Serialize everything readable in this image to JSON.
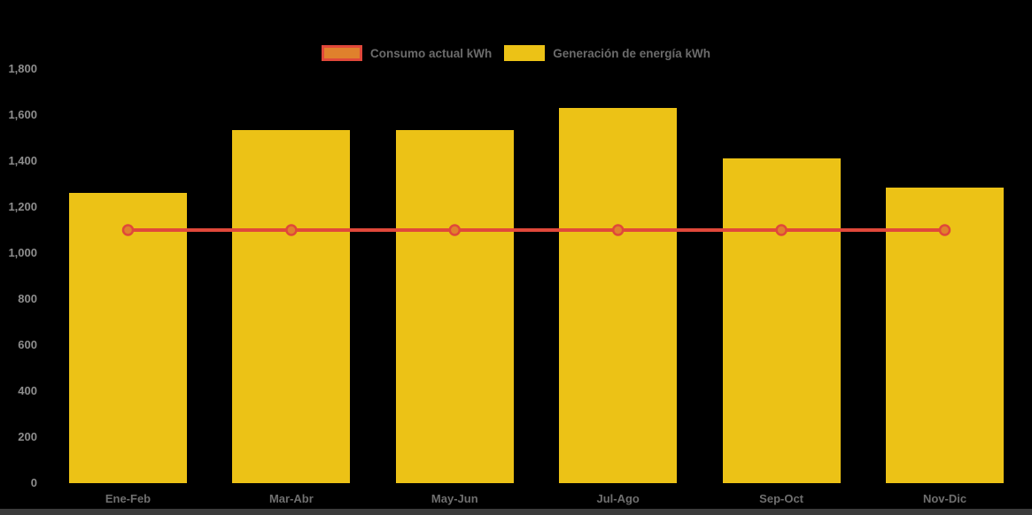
{
  "colors": {
    "background": "#000000",
    "bar_yellow": "#ecc216",
    "line_red": "#e0483a",
    "marker_orange": "#e0812c",
    "y_tick_text": "#8d8d8d",
    "x_tick_text": "#6f6f6f",
    "legend_text": "#6b6b6b",
    "bottom_strip": "#3b3b3b"
  },
  "chart_data": {
    "type": "bar",
    "subtype": "bar-with-line-overlay",
    "categories": [
      "Ene-Feb",
      "Mar-Abr",
      "May-Jun",
      "Jul-Ago",
      "Sep-Oct",
      "Nov-Dic"
    ],
    "series": [
      {
        "name": "Consumo actual kWh",
        "type": "line",
        "values": [
          1100,
          1100,
          1100,
          1100,
          1100,
          1100
        ],
        "color": "#e0483a",
        "marker_fill": "#e0812c"
      },
      {
        "name": "Generación de energía kWh",
        "type": "bar",
        "values": [
          1260,
          1535,
          1535,
          1630,
          1410,
          1285
        ],
        "color": "#ecc216"
      }
    ],
    "title": "",
    "xlabel": "",
    "ylabel": "",
    "ylim": [
      0,
      1800
    ],
    "ytick_step": 200,
    "ytick_labels": [
      "0",
      "200",
      "400",
      "600",
      "800",
      "1,000",
      "1,200",
      "1,400",
      "1,600",
      "1,800"
    ],
    "grid": false,
    "legend_position": "top-center",
    "plot_background": "black"
  }
}
